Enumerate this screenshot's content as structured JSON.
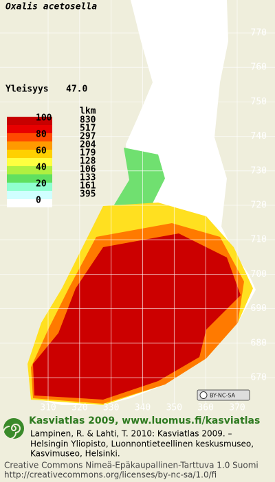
{
  "title": "Oxalis acetosella",
  "frequency": {
    "label": "Yleisyys",
    "value": "47.0"
  },
  "legend": {
    "scale": [
      100,
      80,
      60,
      40,
      20,
      0
    ],
    "count_header": "lkm",
    "counts": [
      830,
      517,
      297,
      204,
      179,
      128,
      106,
      133,
      161,
      395
    ],
    "colors": [
      "#c80000",
      "#e80000",
      "#ff4a00",
      "#ff9a00",
      "#ffd000",
      "#ffff40",
      "#b0f040",
      "#60e060",
      "#90ffd0",
      "#d0ffff"
    ]
  },
  "map": {
    "x_labels": [
      310,
      320,
      330,
      340,
      350,
      360,
      370
    ],
    "y_labels": [
      670,
      680,
      690,
      700,
      710,
      720,
      730,
      740,
      750,
      760,
      770
    ],
    "license_badge": "BY-NC-SA"
  },
  "footer": {
    "heading": "Kasviatlas 2009, www.luomus.fi/kasviatlas",
    "citation": [
      "Lampinen, R. & Lahti, T. 2010: Kasviatlas 2009. –",
      "Helsingin Yliopisto, Luonnontieteellinen keskusmuseo,",
      "Kasvimuseo, Helsinki."
    ],
    "license": [
      "Creative Commons Nimeä-Epäkaupallinen-Tarttuva 1.0 Suomi",
      "http://creativecommons.org/licenses/by-nc-sa/1.0/fi"
    ]
  }
}
